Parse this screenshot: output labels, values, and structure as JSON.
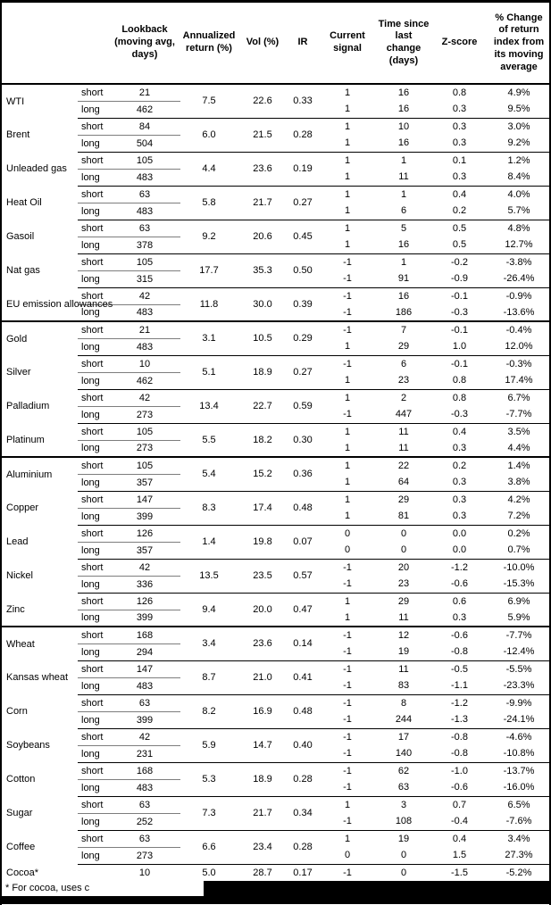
{
  "header": {
    "columns": [
      "",
      "",
      "Lookback (moving avg, days)",
      "Annualized return (%)",
      "Vol (%)",
      "IR",
      "Current signal",
      "Time since last change (days)",
      "Z-score",
      "% Change of return index from its moving average"
    ]
  },
  "groups": [
    {
      "name": "WTI",
      "section_start": false,
      "ann": "7.5",
      "vol": "22.6",
      "ir": "0.33",
      "rows": [
        {
          "leg": "short",
          "lookback": "21",
          "signal": "1",
          "time": "16",
          "z": "0.8",
          "pct": "4.9%"
        },
        {
          "leg": "long",
          "lookback": "462",
          "signal": "1",
          "time": "16",
          "z": "0.3",
          "pct": "9.5%"
        }
      ]
    },
    {
      "name": "Brent",
      "section_start": false,
      "ann": "6.0",
      "vol": "21.5",
      "ir": "0.28",
      "rows": [
        {
          "leg": "short",
          "lookback": "84",
          "signal": "1",
          "time": "10",
          "z": "0.3",
          "pct": "3.0%"
        },
        {
          "leg": "long",
          "lookback": "504",
          "signal": "1",
          "time": "16",
          "z": "0.3",
          "pct": "9.2%"
        }
      ]
    },
    {
      "name": "Unleaded gas",
      "section_start": false,
      "ann": "4.4",
      "vol": "23.6",
      "ir": "0.19",
      "rows": [
        {
          "leg": "short",
          "lookback": "105",
          "signal": "1",
          "time": "1",
          "z": "0.1",
          "pct": "1.2%"
        },
        {
          "leg": "long",
          "lookback": "483",
          "signal": "1",
          "time": "11",
          "z": "0.3",
          "pct": "8.4%"
        }
      ]
    },
    {
      "name": "Heat Oil",
      "section_start": false,
      "ann": "5.8",
      "vol": "21.7",
      "ir": "0.27",
      "rows": [
        {
          "leg": "short",
          "lookback": "63",
          "signal": "1",
          "time": "1",
          "z": "0.4",
          "pct": "4.0%"
        },
        {
          "leg": "long",
          "lookback": "483",
          "signal": "1",
          "time": "6",
          "z": "0.2",
          "pct": "5.7%"
        }
      ]
    },
    {
      "name": "Gasoil",
      "section_start": false,
      "ann": "9.2",
      "vol": "20.6",
      "ir": "0.45",
      "rows": [
        {
          "leg": "short",
          "lookback": "63",
          "signal": "1",
          "time": "5",
          "z": "0.5",
          "pct": "4.8%"
        },
        {
          "leg": "long",
          "lookback": "378",
          "signal": "1",
          "time": "16",
          "z": "0.5",
          "pct": "12.7%"
        }
      ]
    },
    {
      "name": "Nat gas",
      "section_start": false,
      "ann": "17.7",
      "vol": "35.3",
      "ir": "0.50",
      "rows": [
        {
          "leg": "short",
          "lookback": "105",
          "signal": "-1",
          "time": "1",
          "z": "-0.2",
          "pct": "-3.8%"
        },
        {
          "leg": "long",
          "lookback": "315",
          "signal": "-1",
          "time": "91",
          "z": "-0.9",
          "pct": "-26.4%"
        }
      ]
    },
    {
      "name": "EU emission allowances",
      "section_start": false,
      "ann": "11.8",
      "vol": "30.0",
      "ir": "0.39",
      "rows": [
        {
          "leg": "short",
          "lookback": "42",
          "signal": "-1",
          "time": "16",
          "z": "-0.1",
          "pct": "-0.9%"
        },
        {
          "leg": "long",
          "lookback": "483",
          "signal": "-1",
          "time": "186",
          "z": "-0.3",
          "pct": "-13.6%"
        }
      ]
    },
    {
      "name": "Gold",
      "section_start": true,
      "ann": "3.1",
      "vol": "10.5",
      "ir": "0.29",
      "rows": [
        {
          "leg": "short",
          "lookback": "21",
          "signal": "-1",
          "time": "7",
          "z": "-0.1",
          "pct": "-0.4%"
        },
        {
          "leg": "long",
          "lookback": "483",
          "signal": "1",
          "time": "29",
          "z": "1.0",
          "pct": "12.0%"
        }
      ]
    },
    {
      "name": "Silver",
      "section_start": false,
      "ann": "5.1",
      "vol": "18.9",
      "ir": "0.27",
      "rows": [
        {
          "leg": "short",
          "lookback": "10",
          "signal": "-1",
          "time": "6",
          "z": "-0.1",
          "pct": "-0.3%"
        },
        {
          "leg": "long",
          "lookback": "462",
          "signal": "1",
          "time": "23",
          "z": "0.8",
          "pct": "17.4%"
        }
      ]
    },
    {
      "name": "Palladium",
      "section_start": false,
      "ann": "13.4",
      "vol": "22.7",
      "ir": "0.59",
      "rows": [
        {
          "leg": "short",
          "lookback": "42",
          "signal": "1",
          "time": "2",
          "z": "0.8",
          "pct": "6.7%"
        },
        {
          "leg": "long",
          "lookback": "273",
          "signal": "-1",
          "time": "447",
          "z": "-0.3",
          "pct": "-7.7%"
        }
      ]
    },
    {
      "name": "Platinum",
      "section_start": false,
      "ann": "5.5",
      "vol": "18.2",
      "ir": "0.30",
      "rows": [
        {
          "leg": "short",
          "lookback": "105",
          "signal": "1",
          "time": "11",
          "z": "0.4",
          "pct": "3.5%"
        },
        {
          "leg": "long",
          "lookback": "273",
          "signal": "1",
          "time": "11",
          "z": "0.3",
          "pct": "4.4%"
        }
      ]
    },
    {
      "name": "Aluminium",
      "section_start": true,
      "ann": "5.4",
      "vol": "15.2",
      "ir": "0.36",
      "rows": [
        {
          "leg": "short",
          "lookback": "105",
          "signal": "1",
          "time": "22",
          "z": "0.2",
          "pct": "1.4%"
        },
        {
          "leg": "long",
          "lookback": "357",
          "signal": "1",
          "time": "64",
          "z": "0.3",
          "pct": "3.8%"
        }
      ]
    },
    {
      "name": "Copper",
      "section_start": false,
      "ann": "8.3",
      "vol": "17.4",
      "ir": "0.48",
      "rows": [
        {
          "leg": "short",
          "lookback": "147",
          "signal": "1",
          "time": "29",
          "z": "0.3",
          "pct": "4.2%"
        },
        {
          "leg": "long",
          "lookback": "399",
          "signal": "1",
          "time": "81",
          "z": "0.3",
          "pct": "7.2%"
        }
      ]
    },
    {
      "name": "Lead",
      "section_start": false,
      "ann": "1.4",
      "vol": "19.8",
      "ir": "0.07",
      "rows": [
        {
          "leg": "short",
          "lookback": "126",
          "signal": "0",
          "time": "0",
          "z": "0.0",
          "pct": "0.2%"
        },
        {
          "leg": "long",
          "lookback": "357",
          "signal": "0",
          "time": "0",
          "z": "0.0",
          "pct": "0.7%"
        }
      ]
    },
    {
      "name": "Nickel",
      "section_start": false,
      "ann": "13.5",
      "vol": "23.5",
      "ir": "0.57",
      "rows": [
        {
          "leg": "short",
          "lookback": "42",
          "signal": "-1",
          "time": "20",
          "z": "-1.2",
          "pct": "-10.0%"
        },
        {
          "leg": "long",
          "lookback": "336",
          "signal": "-1",
          "time": "23",
          "z": "-0.6",
          "pct": "-15.3%"
        }
      ]
    },
    {
      "name": "Zinc",
      "section_start": false,
      "ann": "9.4",
      "vol": "20.0",
      "ir": "0.47",
      "rows": [
        {
          "leg": "short",
          "lookback": "126",
          "signal": "1",
          "time": "29",
          "z": "0.6",
          "pct": "6.9%"
        },
        {
          "leg": "long",
          "lookback": "399",
          "signal": "1",
          "time": "11",
          "z": "0.3",
          "pct": "5.9%"
        }
      ]
    },
    {
      "name": "Wheat",
      "section_start": true,
      "ann": "3.4",
      "vol": "23.6",
      "ir": "0.14",
      "rows": [
        {
          "leg": "short",
          "lookback": "168",
          "signal": "-1",
          "time": "12",
          "z": "-0.6",
          "pct": "-7.7%"
        },
        {
          "leg": "long",
          "lookback": "294",
          "signal": "-1",
          "time": "19",
          "z": "-0.8",
          "pct": "-12.4%"
        }
      ]
    },
    {
      "name": "Kansas wheat",
      "section_start": false,
      "ann": "8.7",
      "vol": "21.0",
      "ir": "0.41",
      "rows": [
        {
          "leg": "short",
          "lookback": "147",
          "signal": "-1",
          "time": "11",
          "z": "-0.5",
          "pct": "-5.5%"
        },
        {
          "leg": "long",
          "lookback": "483",
          "signal": "-1",
          "time": "83",
          "z": "-1.1",
          "pct": "-23.3%"
        }
      ]
    },
    {
      "name": "Corn",
      "section_start": false,
      "ann": "8.2",
      "vol": "16.9",
      "ir": "0.48",
      "rows": [
        {
          "leg": "short",
          "lookback": "63",
          "signal": "-1",
          "time": "8",
          "z": "-1.2",
          "pct": "-9.9%"
        },
        {
          "leg": "long",
          "lookback": "399",
          "signal": "-1",
          "time": "244",
          "z": "-1.3",
          "pct": "-24.1%"
        }
      ]
    },
    {
      "name": "Soybeans",
      "section_start": false,
      "ann": "5.9",
      "vol": "14.7",
      "ir": "0.40",
      "rows": [
        {
          "leg": "short",
          "lookback": "42",
          "signal": "-1",
          "time": "17",
          "z": "-0.8",
          "pct": "-4.6%"
        },
        {
          "leg": "long",
          "lookback": "231",
          "signal": "-1",
          "time": "140",
          "z": "-0.8",
          "pct": "-10.8%"
        }
      ]
    },
    {
      "name": "Cotton",
      "section_start": false,
      "ann": "5.3",
      "vol": "18.9",
      "ir": "0.28",
      "rows": [
        {
          "leg": "short",
          "lookback": "168",
          "signal": "-1",
          "time": "62",
          "z": "-1.0",
          "pct": "-13.7%"
        },
        {
          "leg": "long",
          "lookback": "483",
          "signal": "-1",
          "time": "63",
          "z": "-0.6",
          "pct": "-16.0%"
        }
      ]
    },
    {
      "name": "Sugar",
      "section_start": false,
      "ann": "7.3",
      "vol": "21.7",
      "ir": "0.34",
      "rows": [
        {
          "leg": "short",
          "lookback": "63",
          "signal": "1",
          "time": "3",
          "z": "0.7",
          "pct": "6.5%"
        },
        {
          "leg": "long",
          "lookback": "252",
          "signal": "-1",
          "time": "108",
          "z": "-0.4",
          "pct": "-7.6%"
        }
      ]
    },
    {
      "name": "Coffee",
      "section_start": false,
      "ann": "6.6",
      "vol": "23.4",
      "ir": "0.28",
      "rows": [
        {
          "leg": "short",
          "lookback": "63",
          "signal": "1",
          "time": "19",
          "z": "0.4",
          "pct": "3.4%"
        },
        {
          "leg": "long",
          "lookback": "273",
          "signal": "0",
          "time": "0",
          "z": "1.5",
          "pct": "27.3%"
        }
      ]
    },
    {
      "name": "Cocoa*",
      "section_start": false,
      "ann": "5.0",
      "vol": "28.7",
      "ir": "0.17",
      "rows": [
        {
          "leg": "",
          "lookback": "10",
          "signal": "-1",
          "time": "0",
          "z": "-1.5",
          "pct": "-5.2%"
        }
      ]
    }
  ],
  "footnote": "* For cocoa, uses c",
  "colors": {
    "border": "#000000",
    "text": "#000000",
    "background": "#ffffff",
    "redaction": "#000000",
    "internal_rule": "#7d7d7d"
  }
}
